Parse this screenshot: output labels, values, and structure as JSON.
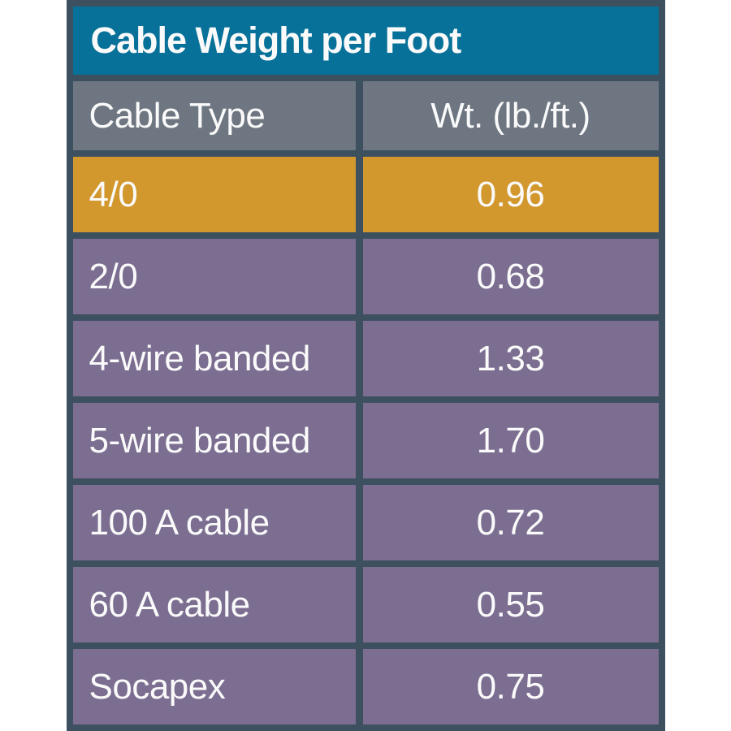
{
  "table": {
    "title": "Cable Weight per Foot",
    "columns": [
      "Cable Type",
      "Wt. (lb./ft.)"
    ],
    "rows": [
      {
        "type": "4/0",
        "weight": "0.96",
        "highlight": true
      },
      {
        "type": "2/0",
        "weight": "0.68",
        "highlight": false
      },
      {
        "type": "4-wire banded",
        "weight": "1.33",
        "highlight": false
      },
      {
        "type": "5-wire banded",
        "weight": "1.70",
        "highlight": false
      },
      {
        "type": "100 A cable",
        "weight": "0.72",
        "highlight": false
      },
      {
        "type": "60 A cable",
        "weight": "0.55",
        "highlight": false
      },
      {
        "type": "Socapex",
        "weight": "0.75",
        "highlight": false
      }
    ]
  },
  "colors": {
    "frame": "#3d5060",
    "title_bg": "#077199",
    "header_bg": "#6e7681",
    "row_bg": "#7c6e91",
    "highlight_bg": "#d2982e",
    "text": "#fafafa",
    "page_bg": "#ffffff"
  },
  "chart_data": {
    "type": "table",
    "title": "Cable Weight per Foot",
    "columns": [
      "Cable Type",
      "Wt. (lb./ft.)"
    ],
    "rows": [
      [
        "4/0",
        0.96
      ],
      [
        "2/0",
        0.68
      ],
      [
        "4-wire banded",
        1.33
      ],
      [
        "5-wire banded",
        1.7
      ],
      [
        "100 A cable",
        0.72
      ],
      [
        "60 A cable",
        0.55
      ],
      [
        "Socapex",
        0.75
      ]
    ],
    "highlighted_row": "4/0",
    "layout": {
      "title_position": "top-left",
      "value_alignment": "center",
      "label_alignment": "left"
    }
  }
}
